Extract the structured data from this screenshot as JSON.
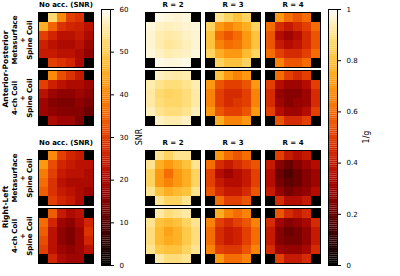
{
  "chart_data": {
    "type": "heatmap",
    "columns": [
      "No acc. (SNR)",
      "R = 2",
      "R = 3",
      "R = 4"
    ],
    "colorbars": [
      {
        "label": "SNR",
        "range": [
          0,
          60
        ],
        "ticks": [
          0,
          10,
          20,
          30,
          40,
          50,
          60
        ]
      },
      {
        "label": "1/g",
        "range": [
          0,
          1
        ],
        "ticks": [
          0,
          0.2,
          0.4,
          0.6,
          0.8,
          1
        ]
      }
    ],
    "groups": [
      {
        "name": "Anterior-Posterior",
        "rows": [
          {
            "name": "Metasurface + Spine Coil",
            "panels": [
              [
                [
                  null,
                  52,
                  40,
                  30,
                  28,
                  null
                ],
                [
                  45,
                  35,
                  28,
                  26,
                  25,
                  22
                ],
                [
                  30,
                  26,
                  22,
                  22,
                  24,
                  20
                ],
                [
                  25,
                  22,
                  20,
                  20,
                  22,
                  18
                ],
                [
                  24,
                  24,
                  22,
                  22,
                  20,
                  16
                ],
                [
                  null,
                  30,
                  28,
                  26,
                  20,
                  null
                ]
              ],
              [
                [
                  null,
                  0.98,
                  0.97,
                  0.96,
                  0.97,
                  null
                ],
                [
                  0.97,
                  0.95,
                  0.94,
                  0.95,
                  0.96,
                  0.97
                ],
                [
                  0.96,
                  0.93,
                  0.92,
                  0.93,
                  0.95,
                  0.96
                ],
                [
                  0.96,
                  0.93,
                  0.91,
                  0.92,
                  0.94,
                  0.96
                ],
                [
                  0.97,
                  0.95,
                  0.93,
                  0.94,
                  0.95,
                  0.97
                ],
                [
                  null,
                  0.98,
                  0.97,
                  0.97,
                  0.98,
                  null
                ]
              ],
              [
                [
                  null,
                  0.9,
                  0.85,
                  0.8,
                  0.85,
                  null
                ],
                [
                  0.85,
                  0.7,
                  0.65,
                  0.7,
                  0.75,
                  0.85
                ],
                [
                  0.8,
                  0.6,
                  0.55,
                  0.6,
                  0.7,
                  0.8
                ],
                [
                  0.8,
                  0.65,
                  0.6,
                  0.62,
                  0.7,
                  0.8
                ],
                [
                  0.85,
                  0.75,
                  0.7,
                  0.7,
                  0.78,
                  0.85
                ],
                [
                  null,
                  0.85,
                  0.8,
                  0.8,
                  0.85,
                  null
                ]
              ],
              [
                [
                  null,
                  0.7,
                  0.6,
                  0.55,
                  0.6,
                  null
                ],
                [
                  0.6,
                  0.45,
                  0.4,
                  0.45,
                  0.5,
                  0.6
                ],
                [
                  0.55,
                  0.35,
                  0.3,
                  0.35,
                  0.45,
                  0.55
                ],
                [
                  0.55,
                  0.4,
                  0.35,
                  0.38,
                  0.45,
                  0.55
                ],
                [
                  0.6,
                  0.5,
                  0.45,
                  0.45,
                  0.5,
                  0.6
                ],
                [
                  null,
                  0.65,
                  0.55,
                  0.55,
                  0.6,
                  null
                ]
              ]
            ]
          },
          {
            "name": "4-ch Coil + Spine Coil",
            "panels": [
              [
                [
                  null,
                  40,
                  32,
                  28,
                  24,
                  null
                ],
                [
                  30,
                  25,
                  22,
                  20,
                  20,
                  18
                ],
                [
                  22,
                  18,
                  16,
                  16,
                  18,
                  16
                ],
                [
                  18,
                  15,
                  14,
                  14,
                  16,
                  14
                ],
                [
                  18,
                  16,
                  15,
                  15,
                  15,
                  12
                ],
                [
                  null,
                  20,
                  18,
                  18,
                  14,
                  null
                ]
              ],
              [
                [
                  null,
                  0.95,
                  0.93,
                  0.92,
                  0.93,
                  null
                ],
                [
                  0.93,
                  0.9,
                  0.88,
                  0.88,
                  0.9,
                  0.93
                ],
                [
                  0.92,
                  0.87,
                  0.85,
                  0.86,
                  0.88,
                  0.92
                ],
                [
                  0.92,
                  0.88,
                  0.86,
                  0.86,
                  0.88,
                  0.92
                ],
                [
                  0.94,
                  0.9,
                  0.88,
                  0.88,
                  0.9,
                  0.94
                ],
                [
                  null,
                  0.95,
                  0.93,
                  0.93,
                  0.95,
                  null
                ]
              ],
              [
                [
                  null,
                  0.8,
                  0.7,
                  0.65,
                  0.7,
                  null
                ],
                [
                  0.7,
                  0.55,
                  0.5,
                  0.5,
                  0.55,
                  0.7
                ],
                [
                  0.65,
                  0.5,
                  0.45,
                  0.45,
                  0.5,
                  0.65
                ],
                [
                  0.65,
                  0.5,
                  0.45,
                  0.48,
                  0.5,
                  0.65
                ],
                [
                  0.7,
                  0.55,
                  0.5,
                  0.5,
                  0.55,
                  0.7
                ],
                [
                  null,
                  0.75,
                  0.65,
                  0.65,
                  0.7,
                  null
                ]
              ],
              [
                [
                  null,
                  0.6,
                  0.5,
                  0.45,
                  0.5,
                  null
                ],
                [
                  0.5,
                  0.35,
                  0.3,
                  0.3,
                  0.35,
                  0.5
                ],
                [
                  0.45,
                  0.28,
                  0.25,
                  0.25,
                  0.3,
                  0.45
                ],
                [
                  0.45,
                  0.3,
                  0.25,
                  0.28,
                  0.3,
                  0.45
                ],
                [
                  0.5,
                  0.35,
                  0.3,
                  0.3,
                  0.35,
                  0.5
                ],
                [
                  null,
                  0.55,
                  0.45,
                  0.45,
                  0.5,
                  null
                ]
              ]
            ]
          }
        ]
      },
      {
        "name": "Right-Left",
        "rows": [
          {
            "name": "Metasurface + Spine Coil",
            "panels": [
              [
                [
                  null,
                  40,
                  30,
                  26,
                  24,
                  null
                ],
                [
                  42,
                  32,
                  26,
                  24,
                  22,
                  22
                ],
                [
                  38,
                  30,
                  24,
                  22,
                  22,
                  20
                ],
                [
                  36,
                  28,
                  22,
                  20,
                  20,
                  20
                ],
                [
                  34,
                  28,
                  24,
                  22,
                  20,
                  18
                ],
                [
                  null,
                  30,
                  26,
                  24,
                  20,
                  null
                ]
              ],
              [
                [
                  null,
                  0.9,
                  0.85,
                  0.9,
                  0.9,
                  null
                ],
                [
                  0.9,
                  0.75,
                  0.7,
                  0.75,
                  0.8,
                  0.9
                ],
                [
                  0.85,
                  0.7,
                  0.6,
                  0.7,
                  0.75,
                  0.85
                ],
                [
                  0.85,
                  0.7,
                  0.65,
                  0.7,
                  0.75,
                  0.85
                ],
                [
                  0.9,
                  0.8,
                  0.75,
                  0.78,
                  0.8,
                  0.9
                ],
                [
                  null,
                  0.9,
                  0.85,
                  0.85,
                  0.9,
                  null
                ]
              ],
              [
                [
                  null,
                  0.7,
                  0.6,
                  0.55,
                  0.6,
                  null
                ],
                [
                  0.6,
                  0.45,
                  0.4,
                  0.45,
                  0.5,
                  0.55
                ],
                [
                  0.5,
                  0.35,
                  0.3,
                  0.35,
                  0.4,
                  0.5
                ],
                [
                  0.5,
                  0.4,
                  0.35,
                  0.35,
                  0.4,
                  0.5
                ],
                [
                  0.55,
                  0.45,
                  0.4,
                  0.4,
                  0.45,
                  0.55
                ],
                [
                  null,
                  0.6,
                  0.5,
                  0.5,
                  0.55,
                  null
                ]
              ],
              [
                [
                  null,
                  0.5,
                  0.4,
                  0.35,
                  0.4,
                  null
                ],
                [
                  0.4,
                  0.25,
                  0.2,
                  0.25,
                  0.3,
                  0.35
                ],
                [
                  0.35,
                  0.2,
                  0.15,
                  0.2,
                  0.25,
                  0.3
                ],
                [
                  0.35,
                  0.22,
                  0.18,
                  0.2,
                  0.25,
                  0.3
                ],
                [
                  0.4,
                  0.28,
                  0.22,
                  0.25,
                  0.28,
                  0.35
                ],
                [
                  null,
                  0.45,
                  0.35,
                  0.35,
                  0.4,
                  null
                ]
              ]
            ]
          },
          {
            "name": "4-ch Coil + Spine Coil",
            "panels": [
              [
                [
                  null,
                  34,
                  24,
                  20,
                  22,
                  null
                ],
                [
                  36,
                  26,
                  18,
                  16,
                  20,
                  26
                ],
                [
                  34,
                  22,
                  16,
                  14,
                  18,
                  28
                ],
                [
                  32,
                  22,
                  16,
                  14,
                  18,
                  26
                ],
                [
                  30,
                  22,
                  18,
                  16,
                  18,
                  22
                ],
                [
                  null,
                  26,
                  20,
                  18,
                  18,
                  null
                ]
              ],
              [
                [
                  null,
                  0.92,
                  0.88,
                  0.9,
                  0.92,
                  null
                ],
                [
                  0.9,
                  0.8,
                  0.78,
                  0.8,
                  0.85,
                  0.9
                ],
                [
                  0.88,
                  0.78,
                  0.72,
                  0.76,
                  0.82,
                  0.88
                ],
                [
                  0.88,
                  0.78,
                  0.74,
                  0.76,
                  0.82,
                  0.88
                ],
                [
                  0.9,
                  0.82,
                  0.8,
                  0.8,
                  0.85,
                  0.9
                ],
                [
                  null,
                  0.92,
                  0.88,
                  0.88,
                  0.9,
                  null
                ]
              ],
              [
                [
                  null,
                  0.75,
                  0.65,
                  0.6,
                  0.65,
                  null
                ],
                [
                  0.65,
                  0.5,
                  0.45,
                  0.5,
                  0.55,
                  0.65
                ],
                [
                  0.6,
                  0.45,
                  0.4,
                  0.42,
                  0.5,
                  0.6
                ],
                [
                  0.6,
                  0.45,
                  0.4,
                  0.42,
                  0.5,
                  0.6
                ],
                [
                  0.65,
                  0.5,
                  0.48,
                  0.48,
                  0.55,
                  0.65
                ],
                [
                  null,
                  0.7,
                  0.6,
                  0.6,
                  0.65,
                  null
                ]
              ],
              [
                [
                  null,
                  0.55,
                  0.45,
                  0.4,
                  0.45,
                  null
                ],
                [
                  0.45,
                  0.3,
                  0.25,
                  0.28,
                  0.32,
                  0.45
                ],
                [
                  0.4,
                  0.25,
                  0.2,
                  0.22,
                  0.28,
                  0.4
                ],
                [
                  0.4,
                  0.25,
                  0.22,
                  0.22,
                  0.28,
                  0.4
                ],
                [
                  0.45,
                  0.3,
                  0.28,
                  0.28,
                  0.32,
                  0.45
                ],
                [
                  null,
                  0.5,
                  0.4,
                  0.4,
                  0.45,
                  null
                ]
              ]
            ]
          }
        ]
      }
    ]
  }
}
